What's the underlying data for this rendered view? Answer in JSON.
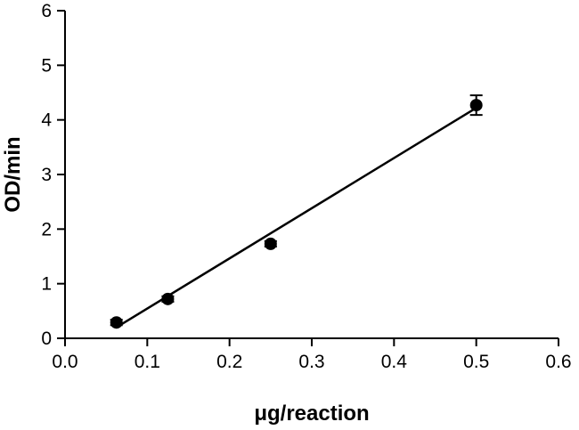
{
  "chart_data": {
    "type": "scatter",
    "title": "",
    "xlabel": "μg/reaction",
    "ylabel": "OD/min",
    "xlim": [
      0,
      0.6
    ],
    "ylim": [
      0,
      6
    ],
    "x_ticks": [
      0.0,
      0.1,
      0.2,
      0.3,
      0.4,
      0.5,
      0.6
    ],
    "x_tick_labels": [
      "0.0",
      "0.1",
      "0.2",
      "0.3",
      "0.4",
      "0.5",
      "0.6"
    ],
    "y_ticks": [
      0,
      1,
      2,
      3,
      4,
      5,
      6
    ],
    "y_tick_labels": [
      "0",
      "1",
      "2",
      "3",
      "4",
      "5",
      "6"
    ],
    "grid": false,
    "series": [
      {
        "x": [
          0.0625,
          0.125,
          0.25,
          0.5
        ],
        "y": [
          0.29,
          0.72,
          1.73,
          4.27
        ],
        "y_error": [
          0.05,
          0.05,
          0.05,
          0.18
        ]
      }
    ],
    "fit_line": {
      "x": [
        0.0625,
        0.5
      ],
      "y": [
        0.2,
        4.22
      ]
    },
    "colors": {
      "points": "#000000",
      "line": "#000000"
    }
  }
}
